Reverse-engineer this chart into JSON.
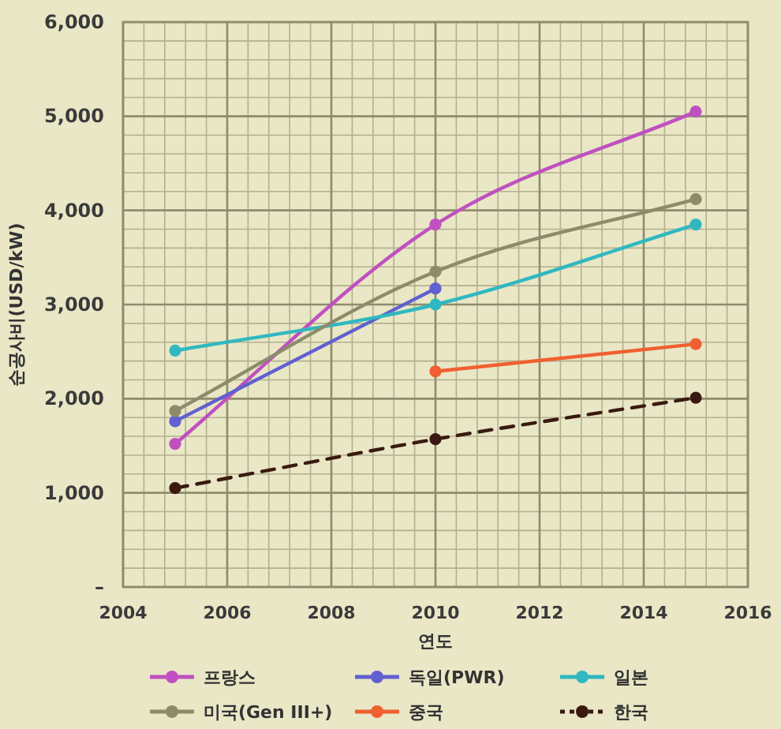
{
  "chart_data": {
    "type": "line",
    "xlabel": "연도",
    "ylabel": "순공사비(USD/kW)",
    "xlim": [
      2004,
      2016
    ],
    "xticks": [
      2004,
      2006,
      2008,
      2010,
      2012,
      2014,
      2016
    ],
    "ylim": [
      0,
      6000
    ],
    "yticks": [
      {
        "value": 0,
        "label": "–"
      },
      {
        "value": 1000,
        "label": "1,000"
      },
      {
        "value": 2000,
        "label": "2,000"
      },
      {
        "value": 3000,
        "label": "3,000"
      },
      {
        "value": 4000,
        "label": "4,000"
      },
      {
        "value": 5000,
        "label": "5,000"
      },
      {
        "value": 6000,
        "label": "6,000"
      }
    ],
    "grid": true,
    "legend": "bottom",
    "marker": "circle",
    "series": [
      {
        "name": "프랑스",
        "color": "#c050c0",
        "x": [
          2005,
          2010,
          2015
        ],
        "values": [
          1520,
          3850,
          5050
        ]
      },
      {
        "name": "독일(PWR)",
        "color": "#6060d0",
        "x": [
          2005,
          2010
        ],
        "values": [
          1760,
          3170
        ]
      },
      {
        "name": "일본",
        "color": "#30b8c0",
        "x": [
          2005,
          2010,
          2015
        ],
        "values": [
          2510,
          3000,
          3850
        ]
      },
      {
        "name": "미국(Gen III+)",
        "color": "#8c8c6a",
        "x": [
          2005,
          2010,
          2015
        ],
        "values": [
          1870,
          3350,
          4120
        ]
      },
      {
        "name": "중국",
        "color": "#f06030",
        "x": [
          2010,
          2015
        ],
        "values": [
          2290,
          2580
        ]
      },
      {
        "name": "한국",
        "color": "#3a1a10",
        "line_style": "dashed",
        "x": [
          2005,
          2010,
          2015
        ],
        "values": [
          1050,
          1570,
          2010
        ]
      }
    ]
  }
}
